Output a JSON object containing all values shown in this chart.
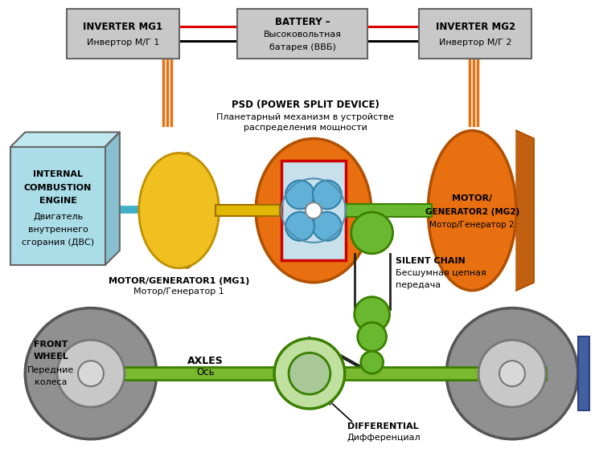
{
  "bg_color": "#ffffff",
  "box_color": "#c8c8c8",
  "box_edge": "#666666",
  "ice_color": "#aadde8",
  "ice_top_color": "#c0e8f0",
  "ice_side_color": "#88c0d0",
  "mg1_color": "#f0c020",
  "mg1_edge": "#c09000",
  "mg2_color": "#e87010",
  "mg2_edge": "#b05000",
  "psd_outer_color": "#e87010",
  "psd_inner_color": "#c8e0ec",
  "psd_rect_edge": "#cc0000",
  "planet_color": "#60b0d8",
  "planet_edge": "#3080a8",
  "green_color": "#6ab830",
  "green_dark": "#3a8000",
  "green_light": "#c0e0a0",
  "axle_color": "#7ab830",
  "wheel_color": "#909090",
  "wheel_inner": "#c8c8c8",
  "wheel_hub": "#e0e0e0",
  "shaft_cyan": "#40b0c8",
  "shaft_yellow": "#e0b800",
  "chain_color": "#222222",
  "red_line": "#dd0000",
  "orange_line": "#e87010",
  "blue_bar": "#4060a0",
  "inv1_text1": "INVERTER MG1",
  "inv1_text2": "Инвертор М/Г 1",
  "bat_text1": "BATTERY –",
  "bat_text2": "Высоковольтная",
  "bat_text3": "батарея (ВВБ)",
  "inv2_text1": "INVERTER MG2",
  "inv2_text2": "Инвертор М/Г 2",
  "ice_text1": "INTERNAL",
  "ice_text2": "COMBUSTION",
  "ice_text3": "ENGINE",
  "ice_text4": "Двигатель",
  "ice_text5": "внутреннего",
  "ice_text6": "сгорания (ДВС)",
  "psd_label1": "PSD (POWER SPLIT DEVICE)",
  "psd_label2": "Планетарный механизм в устройстве",
  "psd_label3": "распределения мощности",
  "mg1_label1": "MOTOR/GENERATOR1 (MG1)",
  "mg1_label2": "Мотор/Генератор 1",
  "mg2_label1": "MOTOR/",
  "mg2_label2": "GENERATOR2 (MG2)",
  "mg2_label3": "Мотор/Генератор 2",
  "sc_label1": "SILENT CHAIN",
  "sc_label2": "Бесшумная цепная",
  "sc_label3": "передача",
  "fw_label1": "FRONT",
  "fw_label2": "WHEEL",
  "fw_label3": "Передние",
  "fw_label4": "колеса",
  "ax_label1": "AXLES",
  "ax_label2": "Ось",
  "diff_label1": "DIFFERENTIAL",
  "diff_label2": "Дифференциал"
}
